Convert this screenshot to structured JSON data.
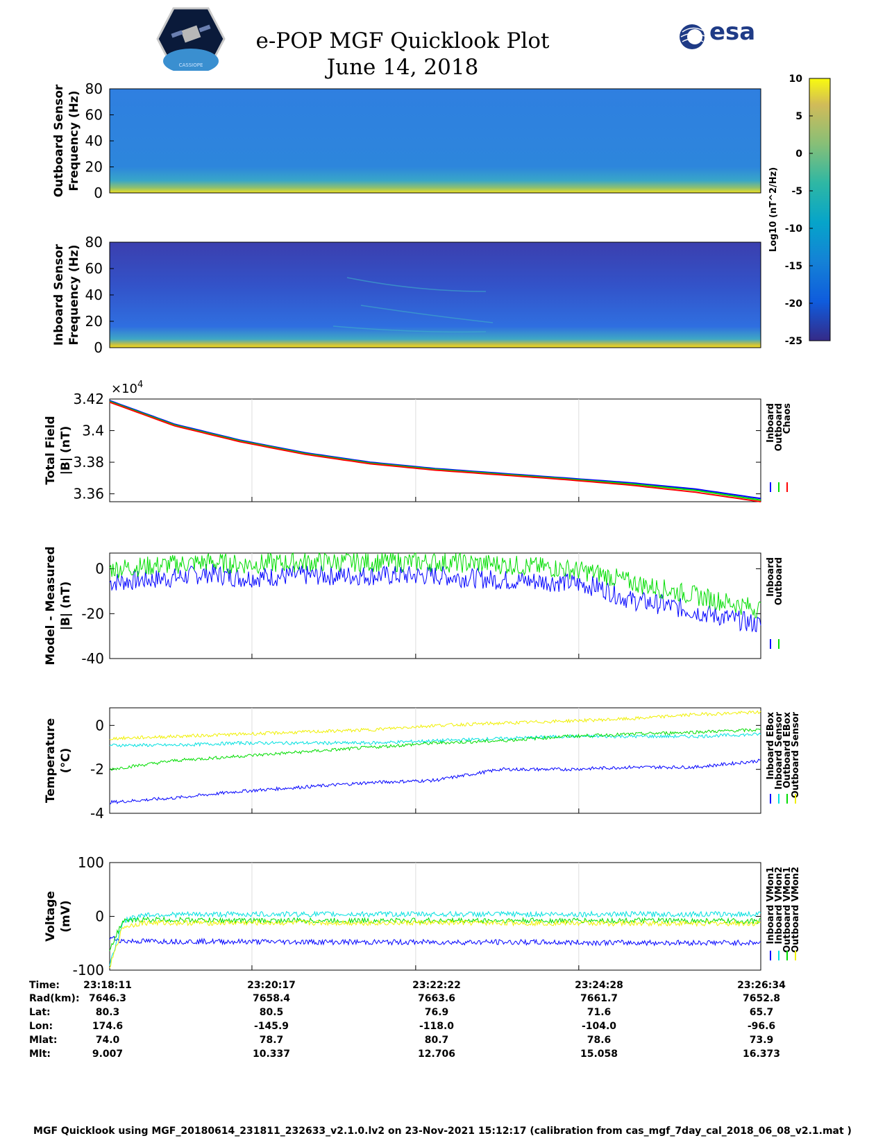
{
  "header": {
    "title_line1": "e-POP MGF Quicklook Plot",
    "title_line2": "June 14, 2018",
    "logo_left": "CASSIOPE",
    "logo_right": "esa"
  },
  "colors": {
    "inboard": "#0000ff",
    "outboard": "#00dd00",
    "chaos": "#ff0000",
    "cyan": "#00e0e0",
    "yellow": "#f0f000"
  },
  "chart_data": [
    {
      "type": "heatmap",
      "name": "outboard-spectrogram",
      "ylabel": [
        "Outboard Sensor",
        "Frequency (Hz)"
      ],
      "ylim": [
        0,
        80
      ],
      "yticks": [
        "0",
        "20",
        "40",
        "60",
        "80"
      ]
    },
    {
      "type": "heatmap",
      "name": "inboard-spectrogram",
      "ylabel": [
        "Inboard Sensor",
        "Frequency (Hz)"
      ],
      "ylim": [
        0,
        80
      ],
      "yticks": [
        "0",
        "20",
        "40",
        "60",
        "80"
      ]
    },
    {
      "type": "colorbar",
      "name": "spectral-colorbar",
      "clim": [
        -25,
        10
      ],
      "ticks": [
        "10",
        "5",
        "0",
        "-5",
        "-10",
        "-15",
        "-20",
        "-25"
      ],
      "label": "Log10 (nT^2/Hz)"
    },
    {
      "type": "line",
      "name": "total-field",
      "ylabel": [
        "Total Field",
        "|B| (nT)"
      ],
      "ylim": [
        3.355,
        3.42
      ],
      "yticks": [
        "3.36",
        "3.38",
        "3.4",
        "3.42"
      ],
      "multiplier": "×10",
      "exponent": "4",
      "legend": [
        "Inboard",
        "Outboard",
        "Chaos"
      ],
      "series": [
        {
          "name": "Inboard",
          "x": [
            0,
            0.1,
            0.2,
            0.3,
            0.4,
            0.5,
            0.6,
            0.7,
            0.8,
            0.9,
            1.0
          ],
          "values": [
            3.419,
            3.404,
            3.394,
            3.386,
            3.38,
            3.376,
            3.373,
            3.37,
            3.367,
            3.363,
            3.357
          ]
        },
        {
          "name": "Outboard",
          "x": [
            0,
            0.1,
            0.2,
            0.3,
            0.4,
            0.5,
            0.6,
            0.7,
            0.8,
            0.9,
            1.0
          ],
          "values": [
            3.4185,
            3.4035,
            3.3935,
            3.3855,
            3.3795,
            3.3755,
            3.3725,
            3.3695,
            3.3663,
            3.3622,
            3.356
          ]
        },
        {
          "name": "Chaos",
          "x": [
            0,
            0.1,
            0.2,
            0.3,
            0.4,
            0.5,
            0.6,
            0.7,
            0.8,
            0.9,
            1.0
          ],
          "values": [
            3.418,
            3.403,
            3.393,
            3.385,
            3.379,
            3.375,
            3.372,
            3.369,
            3.3655,
            3.361,
            3.355
          ]
        }
      ]
    },
    {
      "type": "line",
      "name": "model-minus-measured",
      "ylabel": [
        "Model - Measured",
        "|B| (nT)"
      ],
      "ylim": [
        -40,
        7
      ],
      "yticks": [
        "0",
        "-20",
        "-40"
      ],
      "legend": [
        "Inboard",
        "Outboard"
      ],
      "series": [
        {
          "name": "Inboard",
          "x": [
            0,
            0.05,
            0.1,
            0.15,
            0.2,
            0.3,
            0.4,
            0.5,
            0.6,
            0.7,
            0.75,
            0.8,
            0.85,
            0.9,
            0.95,
            1.0
          ],
          "values": [
            -6,
            -5,
            -4,
            -2,
            -4,
            -3,
            -3,
            -3,
            -5,
            -6,
            -8,
            -14,
            -16,
            -19,
            -22,
            -25
          ]
        },
        {
          "name": "Outboard",
          "x": [
            0,
            0.05,
            0.1,
            0.15,
            0.2,
            0.3,
            0.4,
            0.5,
            0.6,
            0.7,
            0.75,
            0.8,
            0.85,
            0.9,
            0.95,
            1.0
          ],
          "values": [
            0,
            1,
            2,
            3,
            2,
            3,
            3,
            3,
            2,
            0,
            -2,
            -6,
            -9,
            -12,
            -15,
            -18
          ]
        }
      ]
    },
    {
      "type": "line",
      "name": "temperature",
      "ylabel": [
        "Temperature",
        "(°C)"
      ],
      "ylim": [
        -4,
        0.8
      ],
      "yticks": [
        "0",
        "-2",
        "-4"
      ],
      "legend": [
        "Inboard EBox",
        "Inboard Sensor",
        "Outboard EBox",
        "Outboard Sensor"
      ],
      "series": [
        {
          "name": "Inboard EBox",
          "x": [
            0,
            0.1,
            0.2,
            0.3,
            0.4,
            0.5,
            0.6,
            0.7,
            0.8,
            0.9,
            1.0
          ],
          "values": [
            -3.5,
            -3.3,
            -3.0,
            -2.8,
            -2.6,
            -2.5,
            -2.0,
            -2.0,
            -1.9,
            -1.9,
            -1.6
          ]
        },
        {
          "name": "Inboard Sensor",
          "x": [
            0,
            0.1,
            0.2,
            0.3,
            0.4,
            0.5,
            0.6,
            0.7,
            0.8,
            0.9,
            1.0
          ],
          "values": [
            -0.9,
            -0.9,
            -0.8,
            -0.8,
            -0.8,
            -0.7,
            -0.6,
            -0.5,
            -0.5,
            -0.5,
            -0.4
          ]
        },
        {
          "name": "Outboard EBox",
          "x": [
            0,
            0.1,
            0.2,
            0.3,
            0.4,
            0.5,
            0.6,
            0.7,
            0.8,
            0.9,
            1.0
          ],
          "values": [
            -2.0,
            -1.6,
            -1.4,
            -1.2,
            -1.0,
            -0.8,
            -0.7,
            -0.5,
            -0.4,
            -0.3,
            -0.2
          ]
        },
        {
          "name": "Outboard Sensor",
          "x": [
            0,
            0.1,
            0.2,
            0.3,
            0.4,
            0.5,
            0.6,
            0.7,
            0.8,
            0.9,
            1.0
          ],
          "values": [
            -0.6,
            -0.5,
            -0.4,
            -0.3,
            -0.2,
            0.0,
            0.1,
            0.2,
            0.3,
            0.5,
            0.6
          ]
        }
      ]
    },
    {
      "type": "line",
      "name": "voltage",
      "ylabel": [
        "Voltage",
        "(mV)"
      ],
      "ylim": [
        -100,
        100
      ],
      "yticks": [
        "100",
        "0",
        "-100"
      ],
      "legend": [
        "Inboard VMon1",
        "Inboard VMon2",
        "Outboard VMon1",
        "Outboard VMon2"
      ],
      "series": [
        {
          "name": "Inboard VMon1",
          "x": [
            0,
            0.01,
            0.02,
            0.2,
            0.4,
            0.6,
            0.8,
            1.0
          ],
          "values": [
            -40,
            -42,
            -46,
            -47,
            -48,
            -48,
            -49,
            -49
          ]
        },
        {
          "name": "Inboard VMon2",
          "x": [
            0,
            0.02,
            0.05,
            0.2,
            0.4,
            0.6,
            0.8,
            1.0
          ],
          "values": [
            -90,
            -10,
            3,
            4,
            4,
            4,
            4,
            4
          ]
        },
        {
          "name": "Outboard VMon1",
          "x": [
            0,
            0.02,
            0.05,
            0.2,
            0.4,
            0.6,
            0.8,
            1.0
          ],
          "values": [
            -60,
            -10,
            -6,
            -8,
            -8,
            -8,
            -8,
            -9
          ]
        },
        {
          "name": "Outboard VMon2",
          "x": [
            0,
            0.02,
            0.05,
            0.2,
            0.4,
            0.6,
            0.8,
            1.0
          ],
          "values": [
            -95,
            -20,
            -12,
            -12,
            -12,
            -12,
            -13,
            -13
          ]
        }
      ]
    }
  ],
  "orbit_table": {
    "labels": [
      "Time:",
      "Rad(km):",
      "Lat:",
      "Lon:",
      "Mlat:",
      "Mlt:"
    ],
    "columns": [
      {
        "values": [
          "23:18:11",
          "7646.3",
          "80.3",
          "174.6",
          "74.0",
          "9.007"
        ]
      },
      {
        "values": [
          "23:20:17",
          "7658.4",
          "80.5",
          "-145.9",
          "78.7",
          "10.337"
        ]
      },
      {
        "values": [
          "23:22:22",
          "7663.6",
          "76.9",
          "-118.0",
          "80.7",
          "12.706"
        ]
      },
      {
        "values": [
          "23:24:28",
          "7661.7",
          "71.6",
          "-104.0",
          "78.6",
          "15.058"
        ]
      },
      {
        "values": [
          "23:26:34",
          "7652.8",
          "65.7",
          "-96.6",
          "73.9",
          "16.373"
        ]
      }
    ]
  },
  "footer": "MGF Quicklook using MGF_20180614_231811_232633_v2.1.0.lv2 on 23-Nov-2021 15:12:17 (calibration from cas_mgf_7day_cal_2018_06_08_v2.1.mat )"
}
